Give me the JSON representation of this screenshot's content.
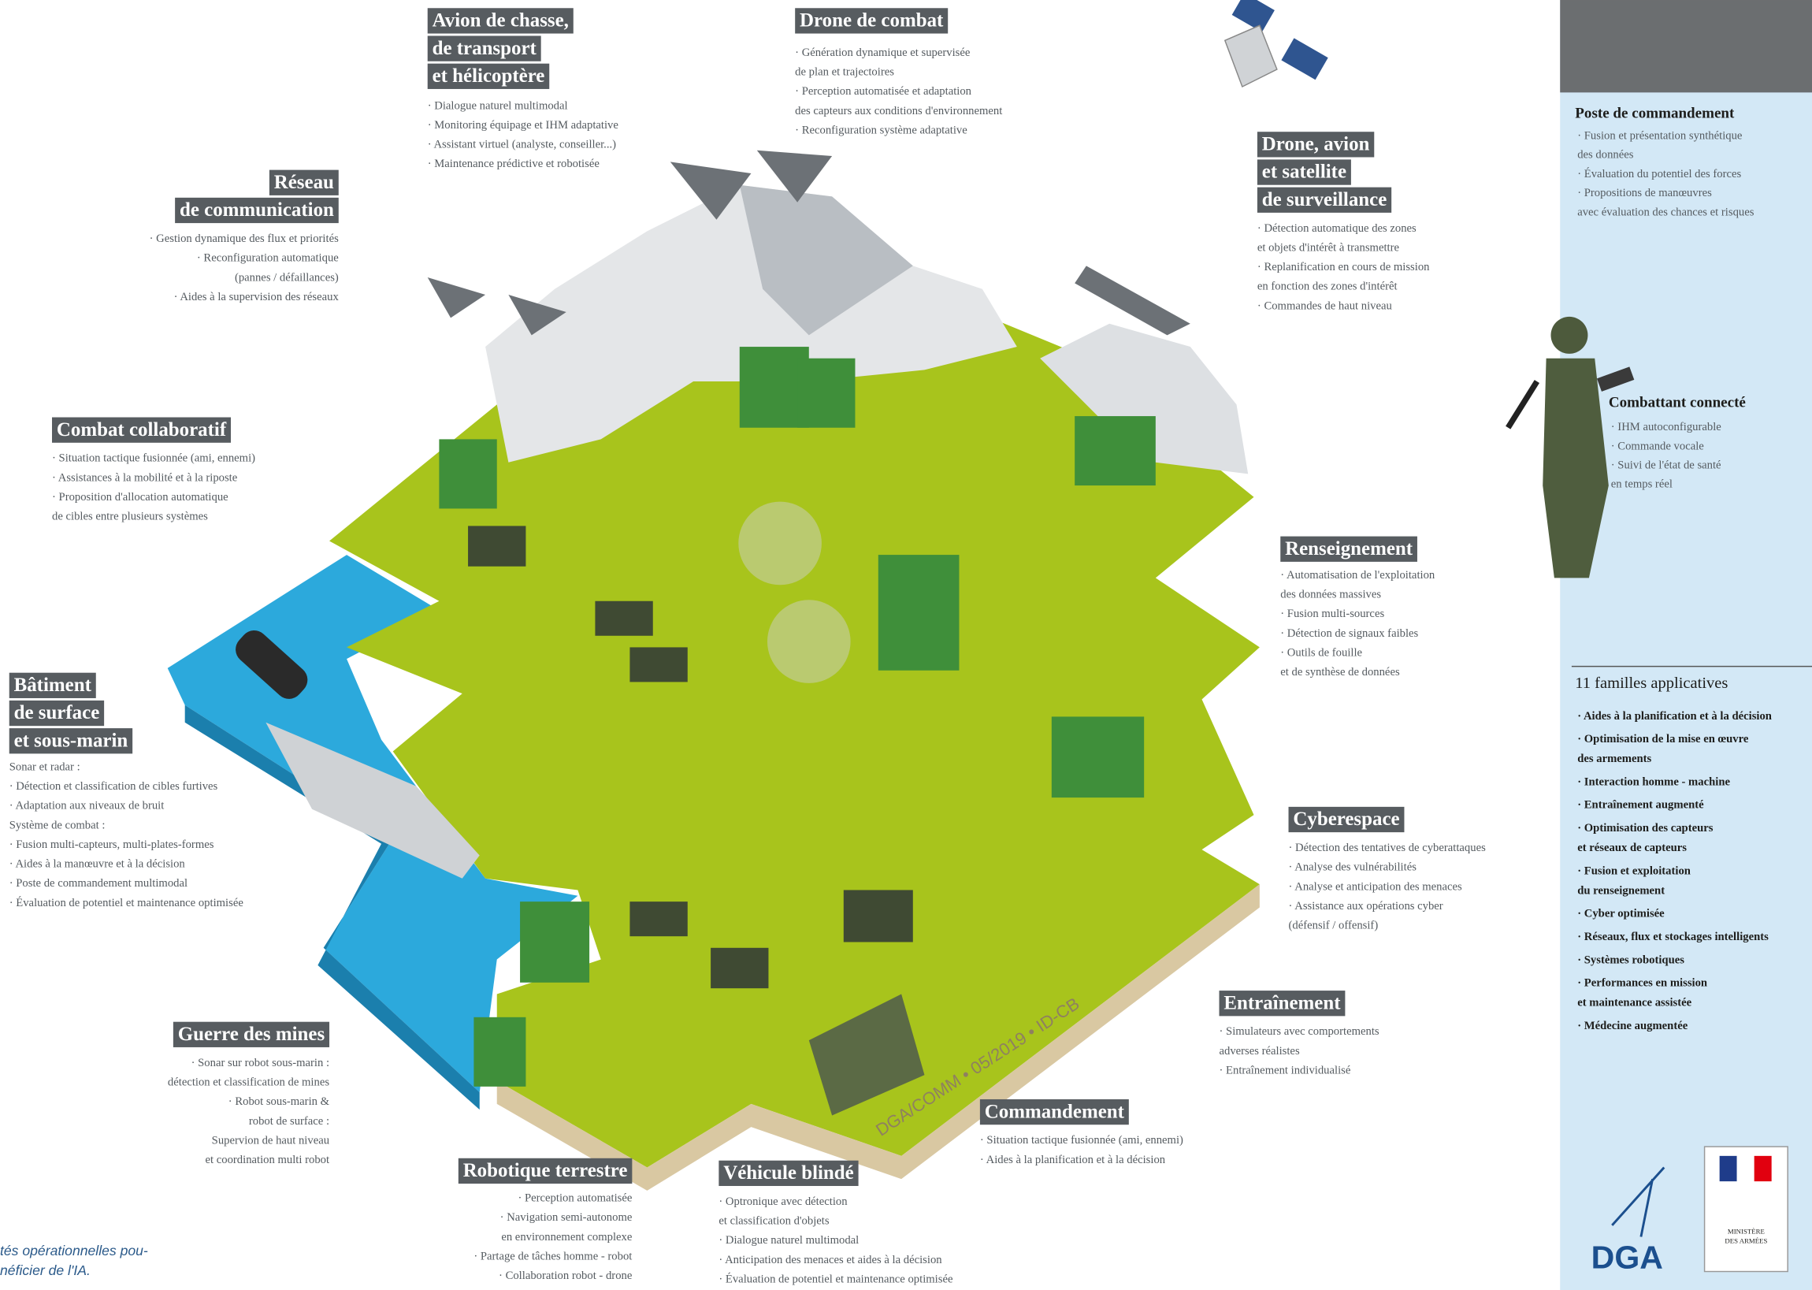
{
  "callouts": [
    {
      "title": [
        "Avion de chasse,",
        "de transport",
        "et hélicoptère"
      ],
      "items": [
        "· Dialogue naturel multimodal",
        "· Monitoring équipage et IHM adaptative",
        "· Assistant virtuel (analyste, conseiller...)",
        "· Maintenance prédictive et robotisée"
      ]
    },
    {
      "title": [
        "Drone de combat"
      ],
      "items": [
        "· Génération dynamique et supervisée",
        "de plan et trajectoires",
        "· Perception automatisée et adaptation",
        "des capteurs aux conditions d'environnement",
        "· Reconfiguration système adaptative"
      ]
    },
    {
      "title": [
        "Réseau",
        "de communication"
      ],
      "items": [
        "· Gestion dynamique des flux et priorités",
        "· Reconfiguration automatique",
        "(pannes / défaillances)",
        "· Aides à la supervision des réseaux"
      ]
    },
    {
      "title": [
        "Drone, avion",
        "et satellite",
        "de surveillance"
      ],
      "items": [
        "· Détection automatique des zones",
        "et objets d'intérêt à transmettre",
        "· Replanification en cours de mission",
        "en fonction des zones d'intérêt",
        "· Commandes de haut niveau"
      ]
    },
    {
      "title": [
        "Combat collaboratif"
      ],
      "items": [
        "· Situation tactique fusionnée (ami, ennemi)",
        "· Assistances à la mobilité et à la riposte",
        "· Proposition d'allocation automatique",
        "de cibles entre plusieurs systèmes"
      ]
    },
    {
      "title": [
        "Renseignement"
      ],
      "items": [
        "· Automatisation de l'exploitation",
        "des données massives",
        "· Fusion multi-sources",
        "· Détection de signaux faibles",
        "· Outils de fouille",
        "et de synthèse de données"
      ]
    },
    {
      "title": [
        "Bâtiment",
        "de surface",
        "et sous-marin"
      ],
      "items": [
        "Sonar et radar :",
        "· Détection et classification de cibles furtives",
        "· Adaptation aux niveaux de bruit",
        "Système de combat :",
        "· Fusion multi-capteurs, multi-plates-formes",
        "· Aides à la manœuvre et à la décision",
        "· Poste de commandement multimodal",
        "· Évaluation de potentiel et maintenance optimisée"
      ]
    },
    {
      "title": [
        "Cyberespace"
      ],
      "items": [
        "· Détection des tentatives de cyberattaques",
        "· Analyse des vulnérabilités",
        "· Analyse et anticipation des menaces",
        "· Assistance aux opérations cyber",
        "(défensif / offensif)"
      ]
    },
    {
      "title": [
        "Entraînement"
      ],
      "items": [
        "· Simulateurs avec comportements",
        "adverses réalistes",
        "· Entraînement individualisé"
      ]
    },
    {
      "title": [
        "Guerre des mines"
      ],
      "items": [
        "· Sonar sur robot sous-marin :",
        "détection et classification de mines",
        "· Robot sous-marin &",
        "robot de surface :",
        "Supervion de haut niveau",
        "et coordination multi robot"
      ]
    },
    {
      "title": [
        "Commandement"
      ],
      "items": [
        "· Situation tactique fusionnée (ami, ennemi)",
        "· Aides à la planification et à la décision"
      ]
    },
    {
      "title": [
        "Robotique terrestre"
      ],
      "items": [
        "· Perception automatisée",
        "· Navigation semi-autonome",
        "en environnement complexe",
        "· Partage de tâches homme - robot",
        "· Collaboration robot - drone"
      ]
    },
    {
      "title": [
        "Véhicule blindé"
      ],
      "items": [
        "· Optronique avec détection",
        "et classification d'objets",
        "· Dialogue naturel multimodal",
        "· Anticipation des menaces et aides à la décision",
        "· Évaluation de potentiel et maintenance optimisée"
      ]
    }
  ],
  "panel": {
    "poste": {
      "title": "Poste de commandement",
      "items": [
        "· Fusion et présentation synthétique",
        "des données",
        "· Évaluation du potentiel des forces",
        "· Propositions de manœuvres",
        "avec évaluation des chances et risques"
      ]
    },
    "combattant": {
      "title": "Combattant connecté",
      "items": [
        "· IHM autoconfigurable",
        "· Commande vocale",
        "· Suivi de l'état de santé",
        "en temps réel"
      ]
    },
    "families": {
      "title": "11 familles applicatives",
      "items": [
        [
          "· Aides à la planification et à la décision"
        ],
        [
          "· Optimisation de la mise en œuvre",
          "des armements"
        ],
        [
          "· Interaction homme - machine"
        ],
        [
          "· Entraînement augmenté"
        ],
        [
          "· Optimisation des capteurs",
          "et réseaux de capteurs"
        ],
        [
          "· Fusion et exploitation",
          "du renseignement"
        ],
        [
          "· Cyber optimisée"
        ],
        [
          "· Réseaux, flux et stockages intelligents"
        ],
        [
          "· Systèmes robotiques"
        ],
        [
          "· Performances en mission",
          "et maintenance assistée"
        ],
        [
          "· Médecine augmentée"
        ]
      ]
    },
    "logo": "DGA",
    "ministry": [
      "MINISTÈRE",
      "DES ARMÉES"
    ]
  },
  "caption": [
    "tés opérationnelles pou-",
    "néficier de l'IA."
  ],
  "watermark": "DGA/COMM • 05/2019 • ID-CB"
}
